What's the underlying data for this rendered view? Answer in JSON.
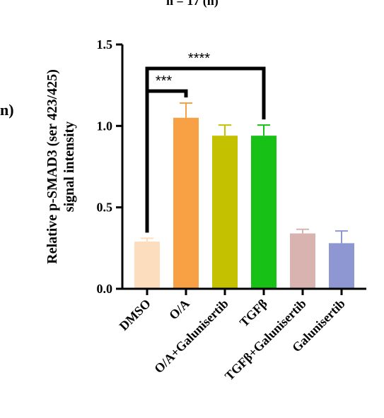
{
  "page_marks": {
    "top_fragment": "n = 17 (n)",
    "side_fragment": "n)"
  },
  "chart_data": {
    "type": "bar",
    "title": "",
    "xlabel": "",
    "ylabel": "Relative p-SMAD3 (ser 423/425)\nsignal intensity",
    "ylim": [
      0,
      1.5
    ],
    "yticks": [
      "0.0",
      "0.5",
      "1.0",
      "1.5"
    ],
    "grid": false,
    "legend": "none",
    "categories": [
      "DMSO",
      "O/A",
      "O/A+Galunisertib",
      "TGFβ",
      "TGFβ+Galunisertib",
      "Galunisertib"
    ],
    "values": [
      0.29,
      1.05,
      0.94,
      0.94,
      0.34,
      0.28
    ],
    "error_bars": [
      0.02,
      0.09,
      0.065,
      0.065,
      0.025,
      0.075
    ],
    "colors": [
      "#FCDDBE",
      "#F8A044",
      "#C4C200",
      "#17C116",
      "#D8B3B0",
      "#8E97D2"
    ],
    "significance": [
      {
        "from": "DMSO",
        "to": "O/A",
        "label": "***"
      },
      {
        "from": "DMSO",
        "to": "TGFβ",
        "label": "****"
      }
    ]
  }
}
